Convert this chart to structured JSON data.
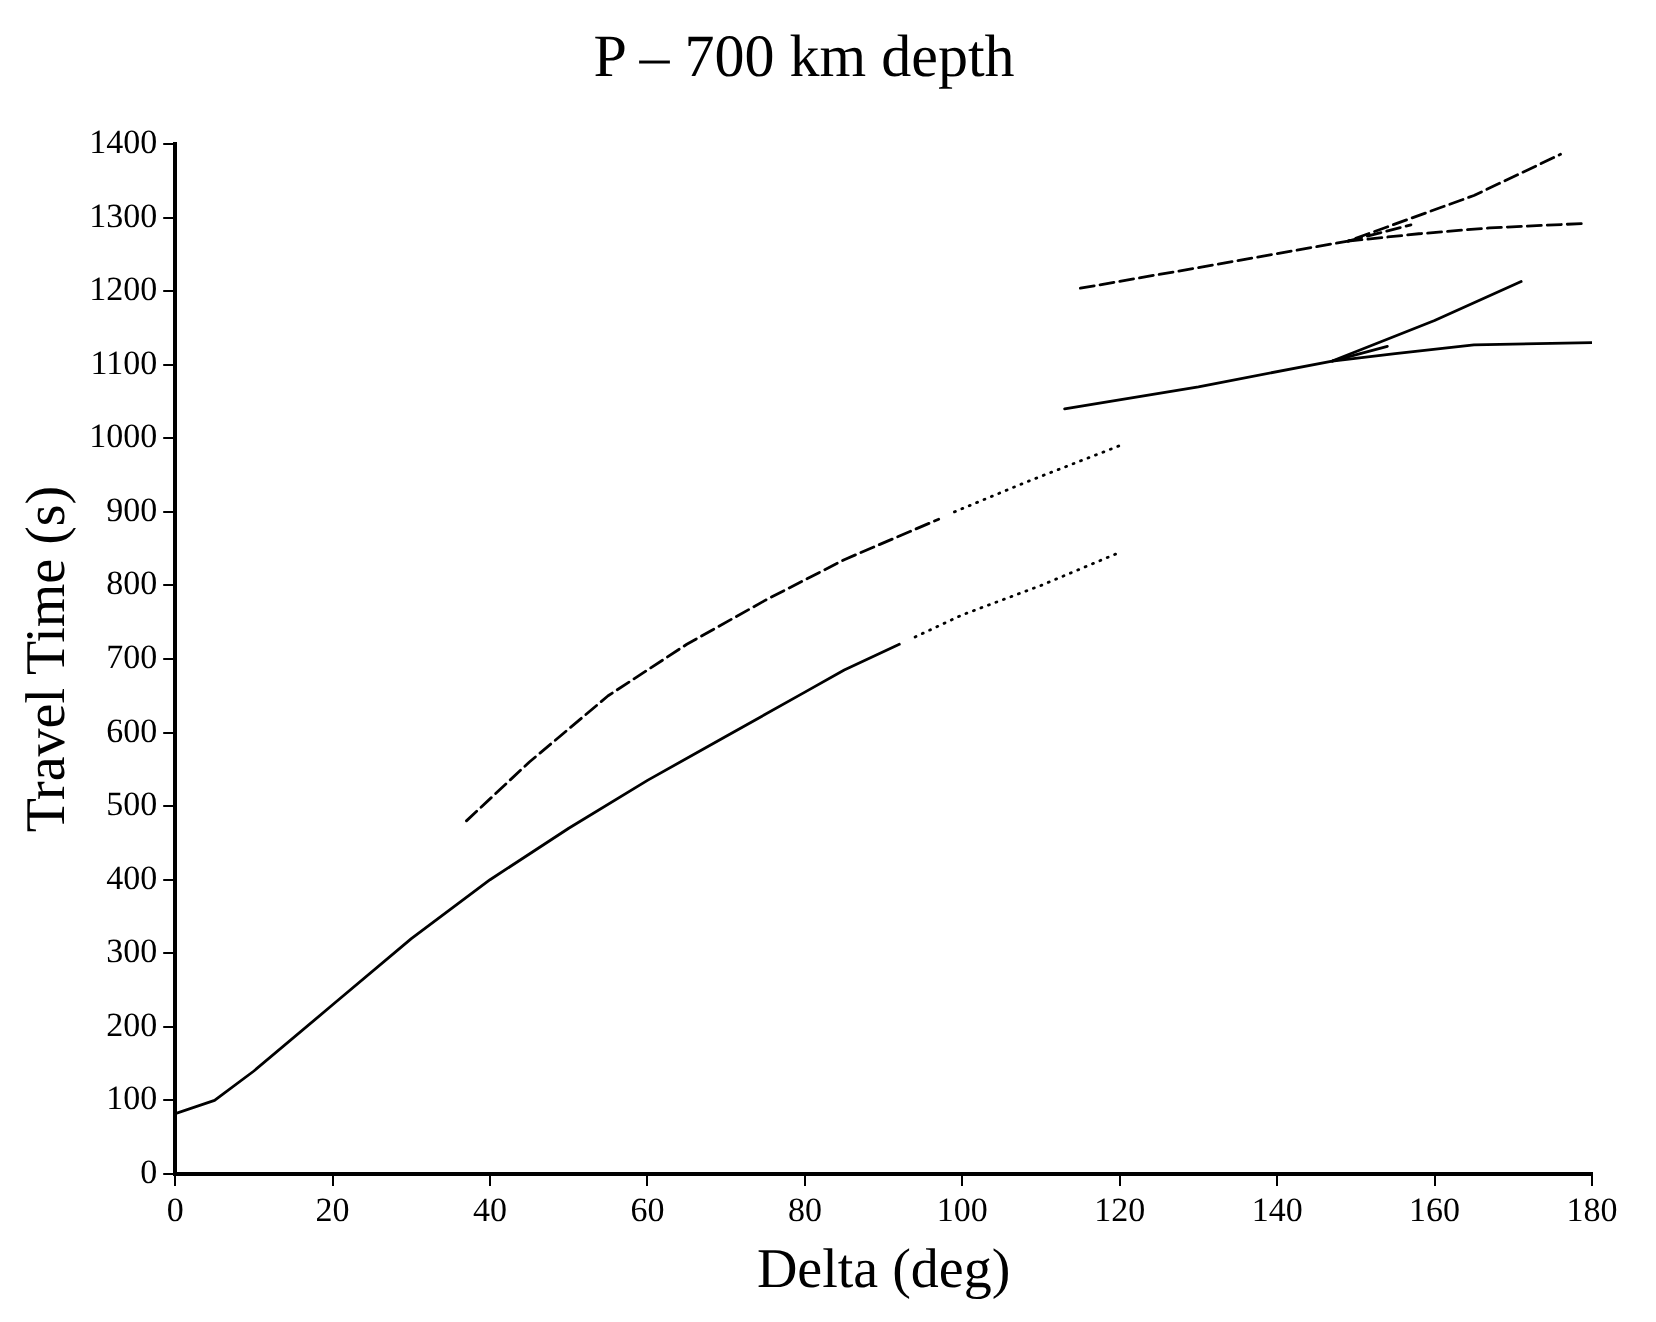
{
  "chart_data": {
    "type": "line",
    "title": "P – 700 km depth",
    "xlabel": "Delta (deg)",
    "ylabel": "Travel Time (s)",
    "xlim": [
      0,
      180
    ],
    "xticks": [
      0,
      20,
      40,
      60,
      80,
      100,
      120,
      140,
      160,
      180
    ],
    "ylim": [
      0,
      1400
    ],
    "yticks": [
      0,
      100,
      200,
      300,
      400,
      500,
      600,
      700,
      800,
      900,
      1000,
      1100,
      1200,
      1300,
      1400
    ],
    "grid": false,
    "legend": false,
    "marker": "none",
    "series": [
      {
        "color": "#000000",
        "line_style": "solid",
        "x": [
          0,
          5,
          10,
          20,
          30,
          40,
          50,
          60,
          70,
          80,
          85,
          92
        ],
        "values": [
          82,
          100,
          140,
          230,
          320,
          400,
          470,
          535,
          595,
          655,
          685,
          720
        ]
      },
      {
        "color": "#000000",
        "line_style": "dotted",
        "x": [
          94,
          100,
          110,
          120
        ],
        "values": [
          730,
          760,
          800,
          845
        ]
      },
      {
        "color": "#000000",
        "line_style": "dashed",
        "x": [
          37,
          45,
          55,
          65,
          75,
          85,
          97
        ],
        "values": [
          480,
          560,
          650,
          720,
          780,
          835,
          890
        ]
      },
      {
        "color": "#000000",
        "line_style": "dotted",
        "x": [
          99,
          108,
          120
        ],
        "values": [
          900,
          940,
          990
        ]
      },
      {
        "color": "#000000",
        "line_style": "solid",
        "x": [
          113,
          130,
          147,
          160,
          171
        ],
        "values": [
          1040,
          1070,
          1105,
          1160,
          1213
        ]
      },
      {
        "color": "#000000",
        "line_style": "solid",
        "x": [
          147,
          154
        ],
        "values": [
          1105,
          1125
        ]
      },
      {
        "color": "#000000",
        "line_style": "solid",
        "x": [
          147,
          155,
          165,
          180
        ],
        "values": [
          1105,
          1115,
          1127,
          1130
        ]
      },
      {
        "color": "#000000",
        "line_style": "dashed",
        "x": [
          115,
          130,
          149,
          165,
          176
        ],
        "values": [
          1204,
          1232,
          1268,
          1330,
          1386
        ]
      },
      {
        "color": "#000000",
        "line_style": "dashed",
        "x": [
          149,
          157
        ],
        "values": [
          1268,
          1290
        ]
      },
      {
        "color": "#000000",
        "line_style": "dashed",
        "x": [
          149,
          158,
          167,
          179
        ],
        "values": [
          1268,
          1278,
          1286,
          1292
        ]
      }
    ]
  }
}
